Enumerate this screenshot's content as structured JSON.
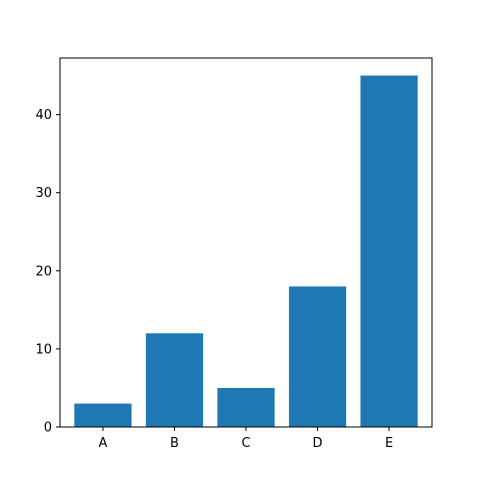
{
  "chart_data": {
    "type": "bar",
    "categories": [
      "A",
      "B",
      "C",
      "D",
      "E"
    ],
    "values": [
      3,
      12,
      5,
      18,
      45
    ],
    "title": "",
    "xlabel": "",
    "ylabel": "",
    "ylim": [
      0,
      47.25
    ],
    "yticks": [
      "0",
      "10",
      "20",
      "30",
      "40"
    ],
    "grid": false,
    "bar_color": "#1f77b4"
  }
}
